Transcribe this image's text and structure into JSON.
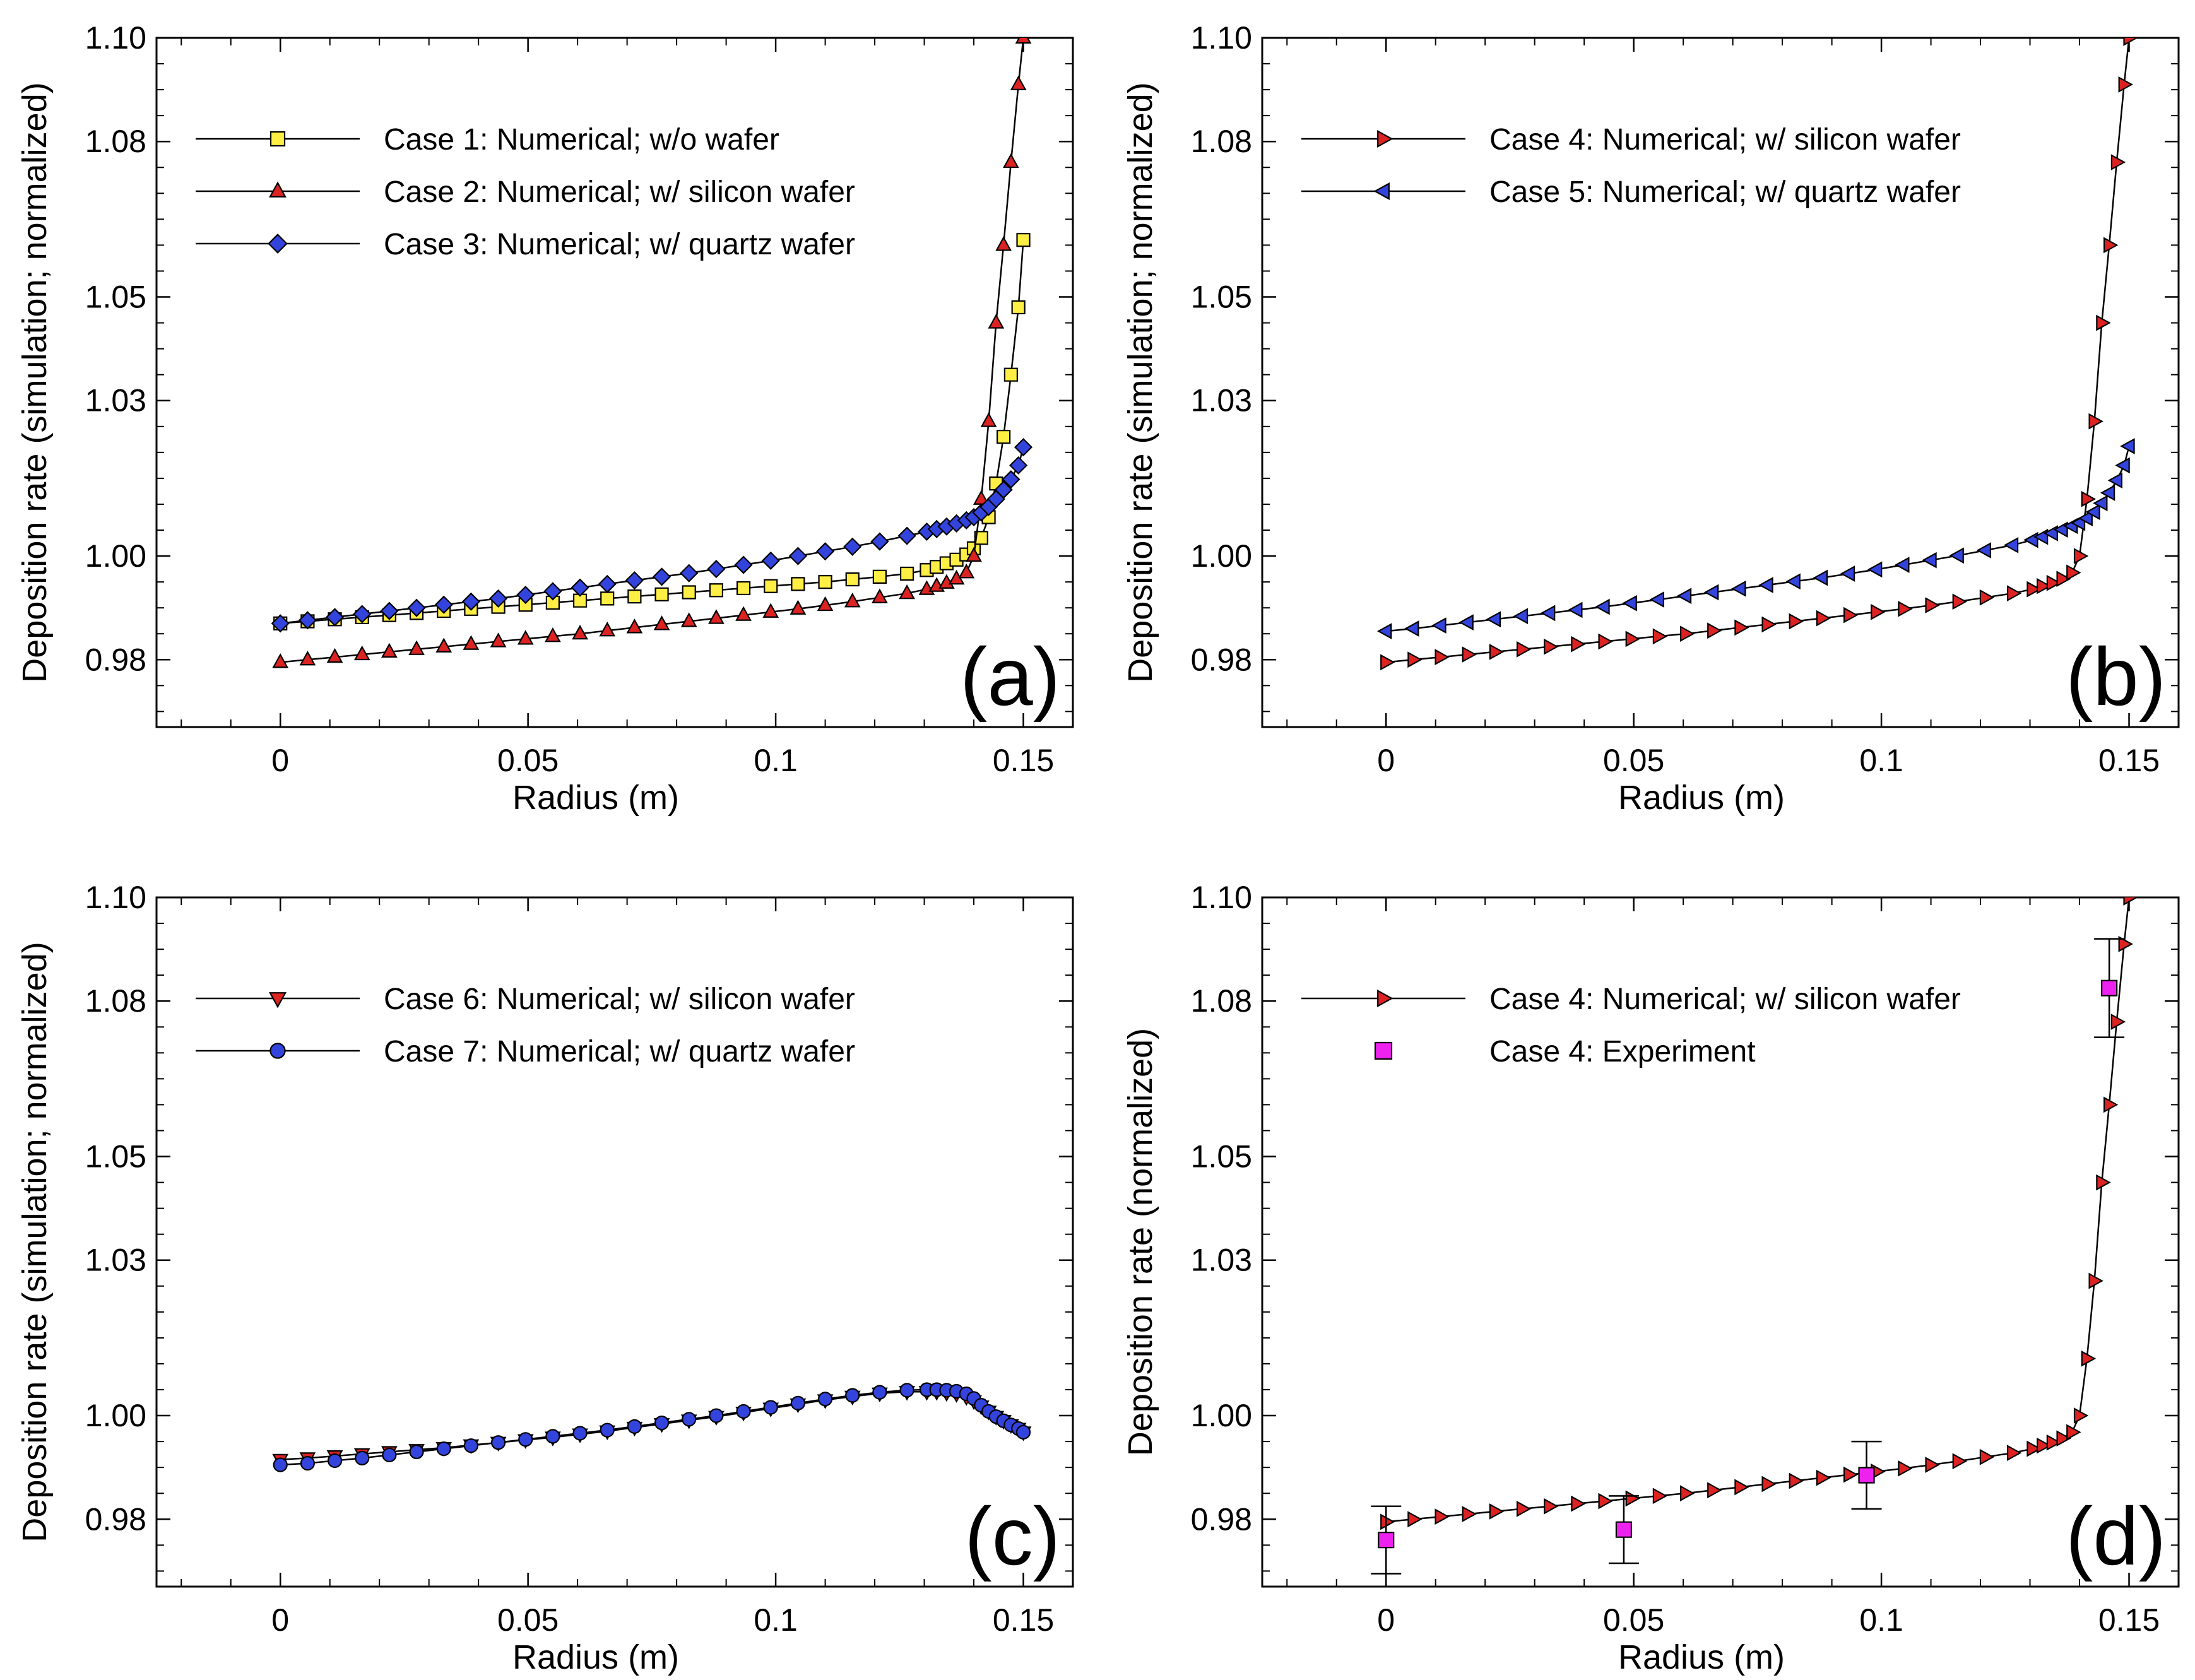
{
  "chart_data": [
    {
      "type": "line",
      "panel_label": "(a)",
      "xlabel": "Radius (m)",
      "ylabel": "Deposition rate (simulation; normalized)",
      "xlim": [
        -0.025,
        0.16
      ],
      "ylim": [
        0.967,
        1.1
      ],
      "xticks": [
        0,
        0.05,
        0.1,
        0.15
      ],
      "xtick_labels": [
        "0",
        "0.05",
        "0.1",
        "0.15"
      ],
      "yticks": [
        0.98,
        1.0,
        1.03,
        1.05,
        1.08,
        1.1
      ],
      "ytick_labels": [
        "0.98",
        "1.00",
        "1.03",
        "1.05",
        "1.08",
        "1.10"
      ],
      "legend_position": "top-left",
      "series": [
        {
          "name": "Case 1: Numerical; w/o wafer",
          "marker": "square",
          "color": "#ffee44",
          "x": [
            0,
            0.0055,
            0.011,
            0.0165,
            0.022,
            0.0275,
            0.033,
            0.0385,
            0.044,
            0.0495,
            0.055,
            0.0605,
            0.066,
            0.0715,
            0.077,
            0.0825,
            0.088,
            0.0935,
            0.099,
            0.1045,
            0.11,
            0.1155,
            0.121,
            0.1265,
            0.1305,
            0.1325,
            0.1345,
            0.1365,
            0.1385,
            0.14,
            0.1415,
            0.143,
            0.1445,
            0.146,
            0.1475,
            0.149,
            0.15
          ],
          "y": [
            0.987,
            0.9874,
            0.9878,
            0.9882,
            0.9886,
            0.989,
            0.9894,
            0.9898,
            0.9902,
            0.9906,
            0.991,
            0.9914,
            0.9918,
            0.9922,
            0.9926,
            0.993,
            0.9934,
            0.9938,
            0.9942,
            0.9946,
            0.995,
            0.9955,
            0.996,
            0.9966,
            0.9973,
            0.9979,
            0.9986,
            0.9993,
            1.0003,
            1.0015,
            1.0035,
            1.0075,
            1.014,
            1.023,
            1.035,
            1.048,
            1.061
          ]
        },
        {
          "name": "Case 2: Numerical; w/ silicon wafer",
          "marker": "triangle-up",
          "color": "#dd2222",
          "x": [
            0,
            0.0055,
            0.011,
            0.0165,
            0.022,
            0.0275,
            0.033,
            0.0385,
            0.044,
            0.0495,
            0.055,
            0.0605,
            0.066,
            0.0715,
            0.077,
            0.0825,
            0.088,
            0.0935,
            0.099,
            0.1045,
            0.11,
            0.1155,
            0.121,
            0.1265,
            0.1305,
            0.1325,
            0.1345,
            0.1365,
            0.1385,
            0.14,
            0.1415,
            0.143,
            0.1445,
            0.146,
            0.1475,
            0.149,
            0.15
          ],
          "y": [
            0.9795,
            0.98,
            0.9805,
            0.981,
            0.9815,
            0.982,
            0.9825,
            0.983,
            0.9835,
            0.984,
            0.9845,
            0.985,
            0.9856,
            0.9862,
            0.9868,
            0.9874,
            0.988,
            0.9886,
            0.9892,
            0.9898,
            0.9905,
            0.9912,
            0.992,
            0.9928,
            0.9936,
            0.9942,
            0.9948,
            0.9956,
            0.9968,
            1.0,
            1.011,
            1.026,
            1.045,
            1.06,
            1.076,
            1.091,
            1.1
          ]
        },
        {
          "name": "Case 3: Numerical; w/ quartz wafer",
          "marker": "diamond",
          "color": "#3344dd",
          "x": [
            0,
            0.0055,
            0.011,
            0.0165,
            0.022,
            0.0275,
            0.033,
            0.0385,
            0.044,
            0.0495,
            0.055,
            0.0605,
            0.066,
            0.0715,
            0.077,
            0.0825,
            0.088,
            0.0935,
            0.099,
            0.1045,
            0.11,
            0.1155,
            0.121,
            0.1265,
            0.1305,
            0.1325,
            0.1345,
            0.1365,
            0.1385,
            0.14,
            0.1415,
            0.143,
            0.1445,
            0.146,
            0.1475,
            0.149,
            0.15
          ],
          "y": [
            0.987,
            0.9876,
            0.9882,
            0.9888,
            0.9894,
            0.99,
            0.9906,
            0.9912,
            0.9918,
            0.9925,
            0.9932,
            0.9939,
            0.9946,
            0.9953,
            0.996,
            0.9967,
            0.9975,
            0.9983,
            0.9991,
            1.0,
            1.0009,
            1.0018,
            1.0028,
            1.0039,
            1.0047,
            1.0052,
            1.0057,
            1.0063,
            1.0069,
            1.0075,
            1.0084,
            1.0095,
            1.011,
            1.0128,
            1.0148,
            1.0175,
            1.021
          ]
        }
      ]
    },
    {
      "type": "line",
      "panel_label": "(b)",
      "xlabel": "Radius (m)",
      "ylabel": "Deposition rate (simulation; normalized)",
      "xlim": [
        -0.025,
        0.16
      ],
      "ylim": [
        0.967,
        1.1
      ],
      "xticks": [
        0,
        0.05,
        0.1,
        0.15
      ],
      "xtick_labels": [
        "0",
        "0.05",
        "0.1",
        "0.15"
      ],
      "yticks": [
        0.98,
        1.0,
        1.03,
        1.05,
        1.08,
        1.1
      ],
      "ytick_labels": [
        "0.98",
        "1.00",
        "1.03",
        "1.05",
        "1.08",
        "1.10"
      ],
      "legend_position": "top-left",
      "series": [
        {
          "name": "Case 4: Numerical; w/ silicon wafer",
          "marker": "triangle-right",
          "color": "#dd2222",
          "x": [
            0,
            0.0055,
            0.011,
            0.0165,
            0.022,
            0.0275,
            0.033,
            0.0385,
            0.044,
            0.0495,
            0.055,
            0.0605,
            0.066,
            0.0715,
            0.077,
            0.0825,
            0.088,
            0.0935,
            0.099,
            0.1045,
            0.11,
            0.1155,
            0.121,
            0.1265,
            0.1305,
            0.1325,
            0.1345,
            0.1365,
            0.1385,
            0.14,
            0.1415,
            0.143,
            0.1445,
            0.146,
            0.1475,
            0.149,
            0.15
          ],
          "y": [
            0.9795,
            0.98,
            0.9805,
            0.981,
            0.9815,
            0.982,
            0.9825,
            0.983,
            0.9835,
            0.984,
            0.9845,
            0.985,
            0.9856,
            0.9862,
            0.9868,
            0.9874,
            0.988,
            0.9886,
            0.9892,
            0.9898,
            0.9905,
            0.9912,
            0.992,
            0.9928,
            0.9936,
            0.9942,
            0.9948,
            0.9956,
            0.9968,
            1.0,
            1.011,
            1.026,
            1.045,
            1.06,
            1.076,
            1.091,
            1.1
          ]
        },
        {
          "name": "Case 5: Numerical; w/ quartz wafer",
          "marker": "triangle-left",
          "color": "#3344dd",
          "x": [
            0,
            0.0055,
            0.011,
            0.0165,
            0.022,
            0.0275,
            0.033,
            0.0385,
            0.044,
            0.0495,
            0.055,
            0.0605,
            0.066,
            0.0715,
            0.077,
            0.0825,
            0.088,
            0.0935,
            0.099,
            0.1045,
            0.11,
            0.1155,
            0.121,
            0.1265,
            0.1305,
            0.1325,
            0.1345,
            0.1365,
            0.1385,
            0.14,
            0.1415,
            0.143,
            0.1445,
            0.146,
            0.1475,
            0.149,
            0.15
          ],
          "y": [
            0.9855,
            0.986,
            0.9866,
            0.9872,
            0.9878,
            0.9884,
            0.989,
            0.9896,
            0.9902,
            0.9909,
            0.9916,
            0.9923,
            0.993,
            0.9937,
            0.9944,
            0.9951,
            0.9958,
            0.9966,
            0.9974,
            0.9983,
            0.9992,
            1.0001,
            1.0011,
            1.0021,
            1.0031,
            1.0037,
            1.0044,
            1.0051,
            1.0058,
            1.0064,
            1.0073,
            1.0085,
            1.0102,
            1.0122,
            1.0146,
            1.0175,
            1.0212
          ]
        }
      ]
    },
    {
      "type": "line",
      "panel_label": "(c)",
      "xlabel": "Radius (m)",
      "ylabel": "Deposition rate (simulation; normalized)",
      "xlim": [
        -0.025,
        0.16
      ],
      "ylim": [
        0.967,
        1.1
      ],
      "xticks": [
        0,
        0.05,
        0.1,
        0.15
      ],
      "xtick_labels": [
        "0",
        "0.05",
        "0.1",
        "0.15"
      ],
      "yticks": [
        0.98,
        1.0,
        1.03,
        1.05,
        1.08,
        1.1
      ],
      "ytick_labels": [
        "0.98",
        "1.00",
        "1.03",
        "1.05",
        "1.08",
        "1.10"
      ],
      "legend_position": "top-left",
      "series": [
        {
          "name": "Case 6: Numerical; w/ silicon wafer",
          "marker": "triangle-down",
          "color": "#dd2222",
          "x": [
            0,
            0.0055,
            0.011,
            0.0165,
            0.022,
            0.0275,
            0.033,
            0.0385,
            0.044,
            0.0495,
            0.055,
            0.0605,
            0.066,
            0.0715,
            0.077,
            0.0825,
            0.088,
            0.0935,
            0.099,
            0.1045,
            0.11,
            0.1155,
            0.121,
            0.1265,
            0.1305,
            0.1325,
            0.1345,
            0.1365,
            0.1385,
            0.14,
            0.1415,
            0.143,
            0.1445,
            0.146,
            0.1475,
            0.149,
            0.15
          ],
          "y": [
            0.9915,
            0.9918,
            0.9922,
            0.9926,
            0.993,
            0.9934,
            0.9938,
            0.9943,
            0.9948,
            0.9953,
            0.9958,
            0.9964,
            0.997,
            0.9977,
            0.9984,
            0.9991,
            0.9998,
            1.0006,
            1.0014,
            1.0022,
            1.003,
            1.0037,
            1.0043,
            1.0046,
            1.0046,
            1.0046,
            1.0044,
            1.0042,
            1.0036,
            1.0028,
            1.0018,
            1.0008,
            0.9998,
            0.999,
            0.9982,
            0.9975,
            0.9968
          ]
        },
        {
          "name": "Case 7: Numerical; w/ quartz wafer",
          "marker": "circle",
          "color": "#3344dd",
          "x": [
            0,
            0.0055,
            0.011,
            0.0165,
            0.022,
            0.0275,
            0.033,
            0.0385,
            0.044,
            0.0495,
            0.055,
            0.0605,
            0.066,
            0.0715,
            0.077,
            0.0825,
            0.088,
            0.0935,
            0.099,
            0.1045,
            0.11,
            0.1155,
            0.121,
            0.1265,
            0.1305,
            0.1325,
            0.1345,
            0.1365,
            0.1385,
            0.14,
            0.1415,
            0.143,
            0.1445,
            0.146,
            0.1475,
            0.149,
            0.15
          ],
          "y": [
            0.9905,
            0.9908,
            0.9913,
            0.9918,
            0.9924,
            0.993,
            0.9936,
            0.9942,
            0.9948,
            0.9954,
            0.996,
            0.9966,
            0.9972,
            0.9979,
            0.9986,
            0.9993,
            1.0,
            1.0008,
            1.0016,
            1.0024,
            1.0032,
            1.0039,
            1.0045,
            1.0049,
            1.005,
            1.005,
            1.0049,
            1.0047,
            1.0042,
            1.0033,
            1.002,
            1.0008,
            0.9998,
            0.999,
            0.9982,
            0.9975,
            0.9968
          ]
        }
      ]
    },
    {
      "type": "line",
      "panel_label": "(d)",
      "xlabel": "Radius (m)",
      "ylabel": "Deposition rate (normalized)",
      "xlim": [
        -0.025,
        0.16
      ],
      "ylim": [
        0.967,
        1.1
      ],
      "xticks": [
        0,
        0.05,
        0.1,
        0.15
      ],
      "xtick_labels": [
        "0",
        "0.05",
        "0.1",
        "0.15"
      ],
      "yticks": [
        0.98,
        1.0,
        1.03,
        1.05,
        1.08,
        1.1
      ],
      "ytick_labels": [
        "0.98",
        "1.00",
        "1.03",
        "1.05",
        "1.08",
        "1.10"
      ],
      "legend_position": "top-left",
      "series": [
        {
          "name": "Case 4: Numerical; w/ silicon wafer",
          "marker": "triangle-right",
          "color": "#dd2222",
          "x": [
            0,
            0.0055,
            0.011,
            0.0165,
            0.022,
            0.0275,
            0.033,
            0.0385,
            0.044,
            0.0495,
            0.055,
            0.0605,
            0.066,
            0.0715,
            0.077,
            0.0825,
            0.088,
            0.0935,
            0.099,
            0.1045,
            0.11,
            0.1155,
            0.121,
            0.1265,
            0.1305,
            0.1325,
            0.1345,
            0.1365,
            0.1385,
            0.14,
            0.1415,
            0.143,
            0.1445,
            0.146,
            0.1475,
            0.149,
            0.15
          ],
          "y": [
            0.9795,
            0.98,
            0.9805,
            0.981,
            0.9815,
            0.982,
            0.9825,
            0.983,
            0.9835,
            0.984,
            0.9845,
            0.985,
            0.9856,
            0.9862,
            0.9868,
            0.9874,
            0.988,
            0.9886,
            0.9892,
            0.9898,
            0.9905,
            0.9912,
            0.992,
            0.9928,
            0.9936,
            0.9942,
            0.9948,
            0.9956,
            0.9968,
            1.0,
            1.011,
            1.026,
            1.045,
            1.06,
            1.076,
            1.091,
            1.1
          ]
        },
        {
          "name": "Case 4: Experiment",
          "marker": "square",
          "color": "#ee22ee",
          "line": false,
          "x": [
            0,
            0.048,
            0.097,
            0.146
          ],
          "y": [
            0.976,
            0.978,
            0.9885,
            1.0825
          ],
          "yerr": [
            0.0065,
            0.0065,
            0.0065,
            0.0095
          ]
        }
      ]
    }
  ]
}
